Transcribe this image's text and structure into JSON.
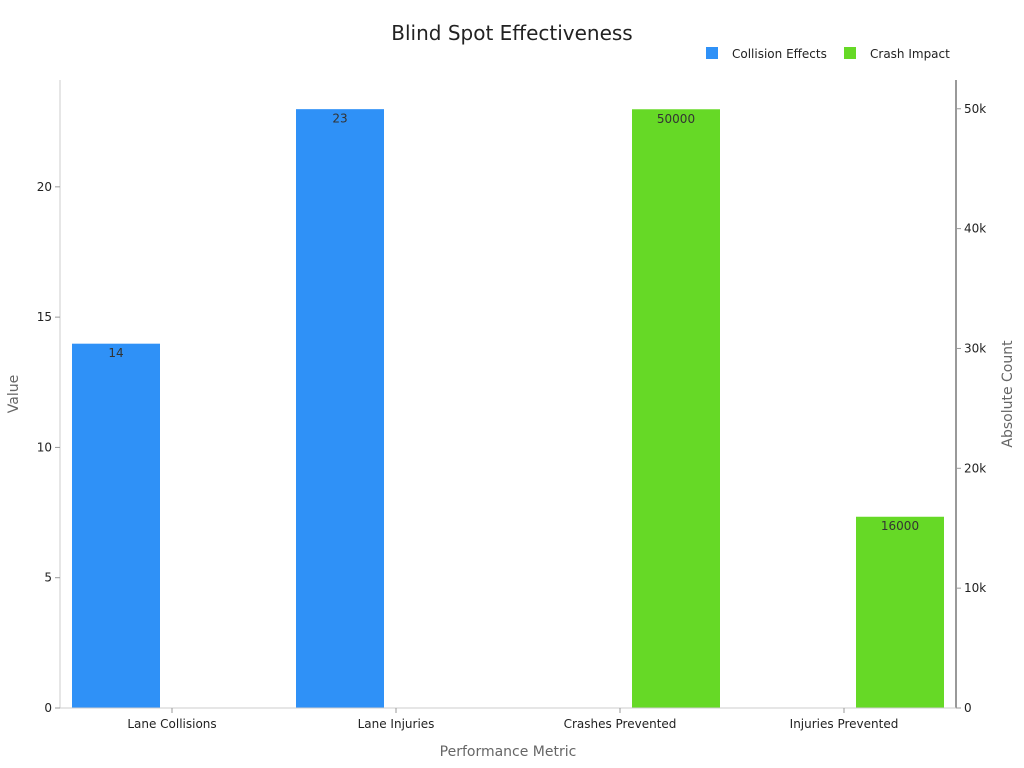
{
  "chart_data": {
    "type": "bar",
    "title": "Blind Spot Effectiveness",
    "xlabel": "Performance Metric",
    "ylabel": "Value",
    "y2label": "Absolute Count",
    "categories": [
      "Lane Collisions",
      "Lane Injuries",
      "Crashes Prevented",
      "Injuries Prevented"
    ],
    "series": [
      {
        "name": "Collision Effects",
        "axis": "left",
        "color": "#2f91f7",
        "values": [
          14,
          23,
          null,
          null
        ],
        "labels": [
          "14",
          "23",
          "",
          ""
        ]
      },
      {
        "name": "Crash Impact",
        "axis": "right",
        "color": "#66d926",
        "values": [
          null,
          null,
          50000,
          16000
        ],
        "labels": [
          "",
          "",
          "50000",
          "16000"
        ]
      }
    ],
    "ylim": [
      0,
      24.1
    ],
    "y2lim": [
      0,
      52400
    ],
    "yticks": [
      0,
      5,
      10,
      15,
      20
    ],
    "ytick_labels": [
      "0",
      "5",
      "10",
      "15",
      "20"
    ],
    "y2ticks": [
      0,
      10000,
      20000,
      30000,
      40000,
      50000
    ],
    "y2tick_labels": [
      "0",
      "10k",
      "20k",
      "30k",
      "40k",
      "50k"
    ],
    "grid": false,
    "legend_position": "top-right"
  }
}
